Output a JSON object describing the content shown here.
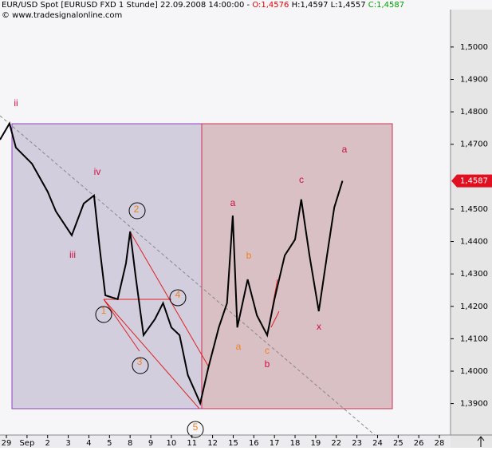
{
  "header": {
    "instrument": "EUR/USD Spot [EURUSD FXD  1 Stunde] 22.09.2008 14:00:00 - ",
    "open": "O:1,4576",
    "high": "H:1,4597",
    "low": "L:1,4557",
    "close": "C:1,4587",
    "copyright": "© www.tradesignalonline.com"
  },
  "chart_data": {
    "type": "line",
    "color": "#000000",
    "x": [
      -0.31,
      0.15,
      0.46,
      1.24,
      2.0,
      2.4,
      3.17,
      3.75,
      4.25,
      4.52,
      4.8,
      5.4,
      5.8,
      6.0,
      6.26,
      6.65,
      7.2,
      7.6,
      8.0,
      8.4,
      8.8,
      9.15,
      9.4,
      9.8,
      10.3,
      10.7,
      10.98,
      11.2,
      11.7,
      12.15,
      12.65,
      13.0,
      13.5,
      14.0,
      14.3,
      14.7,
      15.15,
      15.55,
      15.9,
      16.3
    ],
    "values": [
      1.4714,
      1.4764,
      1.469,
      1.464,
      1.4554,
      1.4493,
      1.4419,
      1.4517,
      1.4542,
      1.4382,
      1.4234,
      1.4222,
      1.4333,
      1.4431,
      1.4296,
      1.4111,
      1.416,
      1.421,
      1.4135,
      1.4111,
      1.3988,
      1.3938,
      1.3901,
      1.4012,
      1.4135,
      1.421,
      1.448,
      1.4135,
      1.4283,
      1.4172,
      1.4111,
      1.4222,
      1.4357,
      1.4406,
      1.453,
      1.4357,
      1.4185,
      1.4357,
      1.4505,
      1.4587
    ],
    "xlim": [
      -0.31,
      21.54
    ],
    "ylim": [
      1.3803,
      1.5145
    ],
    "xticks": [
      {
        "value": 0,
        "label": "29"
      },
      {
        "value": 1,
        "label": "Sep"
      },
      {
        "value": 2,
        "label": "2"
      },
      {
        "value": 3,
        "label": "3"
      },
      {
        "value": 4,
        "label": "4"
      },
      {
        "value": 5,
        "label": "5"
      },
      {
        "value": 6,
        "label": "8"
      },
      {
        "value": 7,
        "label": "9"
      },
      {
        "value": 8,
        "label": "10"
      },
      {
        "value": 9,
        "label": "11"
      },
      {
        "value": 10,
        "label": "12"
      },
      {
        "value": 11,
        "label": "15"
      },
      {
        "value": 12,
        "label": "16"
      },
      {
        "value": 13,
        "label": "17"
      },
      {
        "value": 14,
        "label": "18"
      },
      {
        "value": 15,
        "label": "19"
      },
      {
        "value": 16,
        "label": "22"
      },
      {
        "value": 17,
        "label": "23"
      },
      {
        "value": 18,
        "label": "24"
      },
      {
        "value": 19,
        "label": "25"
      },
      {
        "value": 20,
        "label": "26"
      },
      {
        "value": 21,
        "label": "28"
      }
    ],
    "yticks": [
      {
        "value": 1.39,
        "label": "1,3900"
      },
      {
        "value": 1.4,
        "label": "1,4000"
      },
      {
        "value": 1.41,
        "label": "1,4100"
      },
      {
        "value": 1.42,
        "label": "1,4200"
      },
      {
        "value": 1.43,
        "label": "1,4300"
      },
      {
        "value": 1.44,
        "label": "1,4400"
      },
      {
        "value": 1.45,
        "label": "1,4500"
      },
      {
        "value": 1.47,
        "label": "1,4700"
      },
      {
        "value": 1.48,
        "label": "1,4800"
      },
      {
        "value": 1.49,
        "label": "1,4900"
      },
      {
        "value": 1.5,
        "label": "1,5000"
      }
    ],
    "price_tag": {
      "value": 1.4587,
      "label": "1,4587"
    },
    "annotations": [
      "ii",
      "iv",
      "iii",
      "2",
      "1",
      "3",
      "4",
      "5",
      "a",
      "b",
      "a",
      "c",
      "b",
      "x",
      "c",
      "a"
    ]
  }
}
